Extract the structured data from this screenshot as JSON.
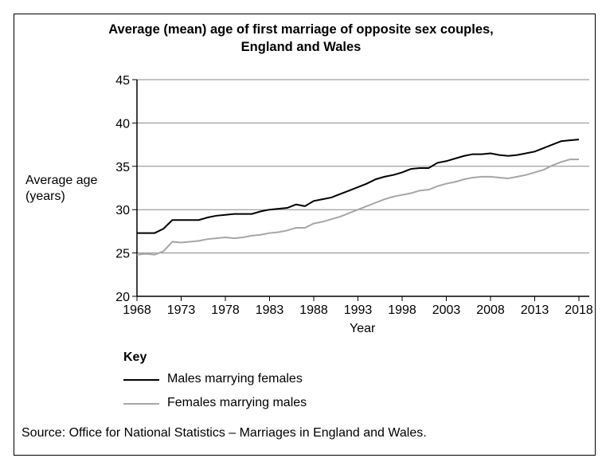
{
  "chart_data": {
    "type": "line",
    "title": [
      "Average (mean) age of first marriage of opposite sex couples,",
      "England and Wales"
    ],
    "xlabel": "Year",
    "ylabel": [
      "Average age",
      "(years)"
    ],
    "xlim": [
      1968,
      2018
    ],
    "ylim": [
      20,
      45
    ],
    "xticks": [
      "1968",
      "1973",
      "1978",
      "1983",
      "1988",
      "1993",
      "1998",
      "2003",
      "2008",
      "2013",
      "2018"
    ],
    "yticks": [
      "20",
      "25",
      "30",
      "35",
      "40",
      "45"
    ],
    "grid": true,
    "legend_title": "Key",
    "legend_position": "bottom-left",
    "x": [
      1968,
      1969,
      1970,
      1971,
      1972,
      1973,
      1974,
      1975,
      1976,
      1977,
      1978,
      1979,
      1980,
      1981,
      1982,
      1983,
      1984,
      1985,
      1986,
      1987,
      1988,
      1989,
      1990,
      1991,
      1992,
      1993,
      1994,
      1995,
      1996,
      1997,
      1998,
      1999,
      2000,
      2001,
      2002,
      2003,
      2004,
      2005,
      2006,
      2007,
      2008,
      2009,
      2010,
      2011,
      2012,
      2013,
      2014,
      2015,
      2016,
      2017,
      2018
    ],
    "series": [
      {
        "name": "Males marrying females",
        "color": "#000000",
        "values": [
          27.3,
          27.3,
          27.3,
          27.8,
          28.8,
          28.8,
          28.8,
          28.8,
          29.1,
          29.3,
          29.4,
          29.5,
          29.5,
          29.5,
          29.8,
          30.0,
          30.1,
          30.2,
          30.6,
          30.4,
          31.0,
          31.2,
          31.4,
          31.8,
          32.2,
          32.6,
          33.0,
          33.5,
          33.8,
          34.0,
          34.3,
          34.7,
          34.8,
          34.8,
          35.4,
          35.6,
          35.9,
          36.2,
          36.4,
          36.4,
          36.5,
          36.3,
          36.2,
          36.3,
          36.5,
          36.7,
          37.1,
          37.5,
          37.9,
          38.0,
          38.1
        ]
      },
      {
        "name": "Females marrying males",
        "color": "#a6a6a6",
        "values": [
          24.8,
          24.9,
          24.8,
          25.2,
          26.3,
          26.2,
          26.3,
          26.4,
          26.6,
          26.7,
          26.8,
          26.7,
          26.8,
          27.0,
          27.1,
          27.3,
          27.4,
          27.6,
          27.9,
          27.9,
          28.4,
          28.6,
          28.9,
          29.2,
          29.6,
          30.0,
          30.4,
          30.8,
          31.2,
          31.5,
          31.7,
          31.9,
          32.2,
          32.3,
          32.7,
          33.0,
          33.2,
          33.5,
          33.7,
          33.8,
          33.8,
          33.7,
          33.6,
          33.8,
          34.0,
          34.3,
          34.6,
          35.1,
          35.5,
          35.8,
          35.8
        ]
      }
    ]
  },
  "source": "Source: Office for National Statistics – Marriages in England and Wales."
}
